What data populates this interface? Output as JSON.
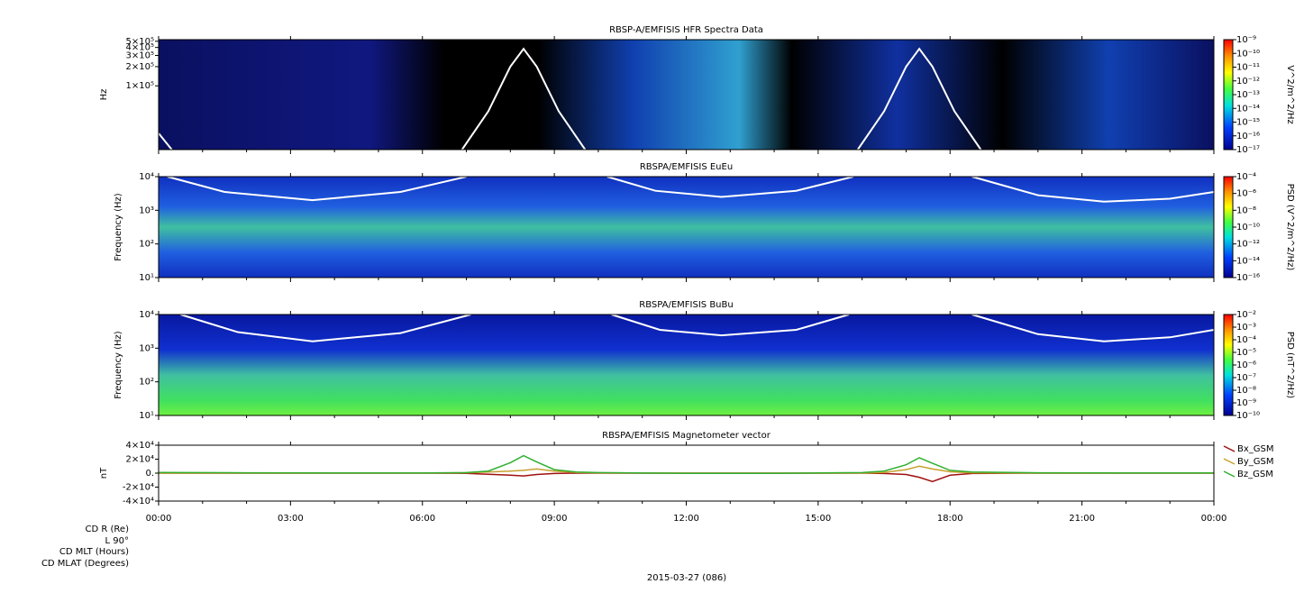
{
  "time_axis": {
    "xlim": [
      0,
      24
    ],
    "xticks": [
      {
        "value": 0,
        "label": "00:00"
      },
      {
        "value": 3,
        "label": "03:00"
      },
      {
        "value": 6,
        "label": "06:00"
      },
      {
        "value": 9,
        "label": "09:00"
      },
      {
        "value": 12,
        "label": "12:00"
      },
      {
        "value": 15,
        "label": "15:00"
      },
      {
        "value": 18,
        "label": "18:00"
      },
      {
        "value": 21,
        "label": "21:00"
      },
      {
        "value": 24,
        "label": "00:00"
      }
    ],
    "xminorticks": [
      1,
      2,
      4,
      5,
      7,
      8,
      10,
      11,
      13,
      14,
      16,
      17,
      19,
      20,
      22,
      23
    ]
  },
  "ephemeris": {
    "labels": [
      "CD R (Re)",
      "L 90°",
      "CD MLT (Hours)",
      "CD MLAT (Degrees)"
    ],
    "date": "2015-03-27 (086)"
  },
  "chart_data": [
    {
      "type": "spectrogram",
      "title": "RBSP-A/EMFISIS  HFR Spectra Data",
      "ylabel": "Hz",
      "log_y": true,
      "ylim": [
        10000,
        530000
      ],
      "yticks": [
        {
          "value": 500000,
          "label": "5×10⁵"
        },
        {
          "value": 400000,
          "label": "4×10⁵"
        },
        {
          "value": 300000,
          "label": "3×10⁵"
        },
        {
          "value": 200000,
          "label": "2×10⁵"
        },
        {
          "value": 100000,
          "label": "1×10⁵"
        }
      ],
      "colorbar": {
        "label": "V^2/m^2/Hz",
        "lim": [
          1e-17,
          1e-09
        ],
        "ticks": [
          {
            "value": 1e-09,
            "label": "10⁻⁹"
          },
          {
            "value": 1e-10,
            "label": "10⁻¹⁰"
          },
          {
            "value": 1e-11,
            "label": "10⁻¹¹"
          },
          {
            "value": 1e-12,
            "label": "10⁻¹²"
          },
          {
            "value": 1e-13,
            "label": "10⁻¹³"
          },
          {
            "value": 1e-14,
            "label": "10⁻¹⁴"
          },
          {
            "value": 1e-15,
            "label": "10⁻¹⁵"
          },
          {
            "value": 1e-16,
            "label": "10⁻¹⁶"
          },
          {
            "value": 1e-17,
            "label": "10⁻¹⁷"
          }
        ]
      },
      "overlay": {
        "color": "#ffffff",
        "x": [
          0,
          0.3,
          null,
          6.9,
          7.5,
          8.0,
          8.3,
          8.6,
          9.1,
          9.7,
          null,
          15.9,
          16.5,
          17.0,
          17.3,
          17.6,
          18.1,
          18.7
        ],
        "values": [
          18000,
          10000,
          null,
          10000,
          40000,
          200000,
          380000,
          200000,
          40000,
          10000,
          null,
          10000,
          40000,
          200000,
          380000,
          200000,
          40000,
          10000
        ]
      }
    },
    {
      "type": "spectrogram",
      "title": "RBSPA/EMFISIS  EuEu",
      "ylabel": "Frequency (Hz)",
      "log_y": true,
      "ylim": [
        10,
        10000
      ],
      "yticks": [
        {
          "value": 10000,
          "label": "10⁴"
        },
        {
          "value": 1000,
          "label": "10³"
        },
        {
          "value": 100,
          "label": "10²"
        },
        {
          "value": 10,
          "label": "10¹"
        }
      ],
      "colorbar": {
        "label": "PSD (V^2/m^2/Hz)",
        "lim": [
          1e-16,
          0.0001
        ],
        "ticks": [
          {
            "value": 0.0001,
            "label": "10⁻⁴"
          },
          {
            "value": 1e-06,
            "label": "10⁻⁶"
          },
          {
            "value": 1e-08,
            "label": "10⁻⁸"
          },
          {
            "value": 1e-10,
            "label": "10⁻¹⁰"
          },
          {
            "value": 1e-12,
            "label": "10⁻¹²"
          },
          {
            "value": 1e-14,
            "label": "10⁻¹⁴"
          },
          {
            "value": 1e-16,
            "label": "10⁻¹⁶"
          }
        ]
      },
      "overlay": {
        "color": "#ffffff",
        "x": [
          0.2,
          1.5,
          3.5,
          5.5,
          7.0,
          null,
          10.2,
          11.3,
          12.8,
          14.5,
          15.8,
          null,
          18.5,
          20.0,
          21.5,
          23.0,
          24
        ],
        "values": [
          10000,
          3500,
          2000,
          3500,
          10000,
          null,
          10000,
          3800,
          2500,
          3800,
          10000,
          null,
          10000,
          2800,
          1800,
          2200,
          3500
        ]
      }
    },
    {
      "type": "spectrogram",
      "title": "RBSPA/EMFISIS  BuBu",
      "ylabel": "Frequency (Hz)",
      "log_y": true,
      "ylim": [
        10,
        10000
      ],
      "yticks": [
        {
          "value": 10000,
          "label": "10⁴"
        },
        {
          "value": 1000,
          "label": "10³"
        },
        {
          "value": 100,
          "label": "10²"
        },
        {
          "value": 10,
          "label": "10¹"
        }
      ],
      "colorbar": {
        "label": "PSD (nT^2/Hz)",
        "lim": [
          1e-10,
          0.01
        ],
        "ticks": [
          {
            "value": 0.01,
            "label": "10⁻²"
          },
          {
            "value": 0.001,
            "label": "10⁻³"
          },
          {
            "value": 0.0001,
            "label": "10⁻⁴"
          },
          {
            "value": 1e-05,
            "label": "10⁻⁵"
          },
          {
            "value": 1e-06,
            "label": "10⁻⁶"
          },
          {
            "value": 1e-07,
            "label": "10⁻⁷"
          },
          {
            "value": 1e-08,
            "label": "10⁻⁸"
          },
          {
            "value": 1e-09,
            "label": "10⁻⁹"
          },
          {
            "value": 1e-10,
            "label": "10⁻¹⁰"
          }
        ]
      },
      "overlay": {
        "color": "#ffffff",
        "x": [
          0.5,
          1.8,
          3.5,
          5.5,
          7.1,
          null,
          10.3,
          11.4,
          12.8,
          14.5,
          15.7,
          null,
          18.5,
          20.0,
          21.5,
          23.0,
          24
        ],
        "values": [
          10000,
          3000,
          1600,
          2800,
          10000,
          null,
          10000,
          3500,
          2400,
          3500,
          10000,
          null,
          10000,
          2600,
          1600,
          2100,
          3500
        ]
      }
    },
    {
      "type": "line",
      "title": "RBSPA/EMFISIS  Magnetometer vector",
      "ylabel": "nT",
      "log_y": false,
      "ylim": [
        -40000,
        40000
      ],
      "yticks": [
        {
          "value": 40000,
          "label": "4×10⁴"
        },
        {
          "value": 20000,
          "label": "2×10⁴"
        },
        {
          "value": 0,
          "label": "0."
        },
        {
          "value": -20000,
          "label": "-2×10⁴"
        },
        {
          "value": -40000,
          "label": "-4×10⁴"
        }
      ],
      "x": [
        0,
        2,
        4,
        6,
        7,
        7.5,
        8,
        8.3,
        8.6,
        9,
        9.5,
        10,
        12,
        14,
        15,
        16,
        16.5,
        17,
        17.3,
        17.6,
        18,
        18.5,
        20,
        22,
        24
      ],
      "series": [
        {
          "name": "Bx_GSM",
          "color": "#a01010",
          "values": [
            0,
            0,
            0,
            0,
            -300,
            -1500,
            -3000,
            -4000,
            -2000,
            -500,
            0,
            0,
            0,
            0,
            0,
            0,
            -500,
            -2000,
            -6000,
            -12000,
            -3000,
            -500,
            0,
            0,
            0
          ]
        },
        {
          "name": "By_GSM",
          "color": "#c8a030",
          "values": [
            0,
            0,
            0,
            0,
            500,
            1500,
            3000,
            4000,
            6000,
            3000,
            1000,
            300,
            0,
            0,
            0,
            0,
            1000,
            5000,
            10000,
            6000,
            2000,
            500,
            0,
            0,
            0
          ]
        },
        {
          "name": "Bz_GSM",
          "color": "#30b030",
          "values": [
            1000,
            500,
            300,
            300,
            800,
            3000,
            15000,
            25000,
            16000,
            5000,
            1500,
            800,
            -300,
            -200,
            200,
            800,
            3000,
            12000,
            22000,
            14000,
            4000,
            1500,
            500,
            300,
            200
          ]
        }
      ]
    }
  ]
}
